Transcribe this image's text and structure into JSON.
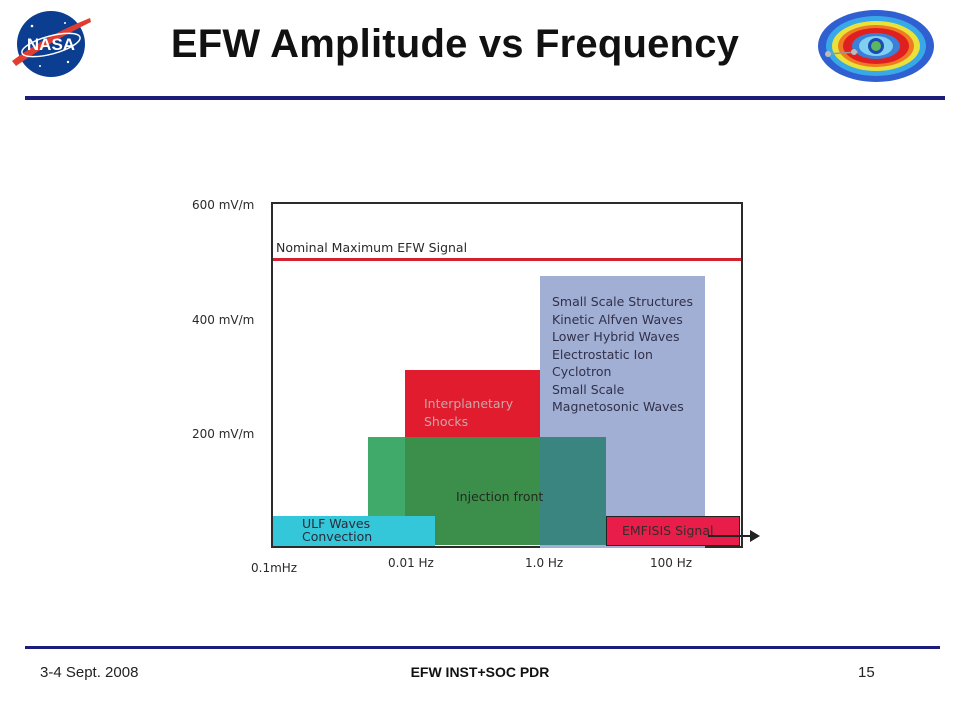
{
  "header": {
    "title": "EFW  Amplitude vs Frequency",
    "left_logo": "NASA",
    "right_logo_icon": "radiation-belts-icon"
  },
  "chart_data": {
    "type": "diagram",
    "y_axis": {
      "ticks": [
        "600 mV/m",
        "400 mV/m",
        "200 mV/m"
      ]
    },
    "x_axis": {
      "ticks": [
        "0.1mHz",
        "0.01 Hz",
        "1.0 Hz",
        "100 Hz"
      ]
    },
    "reference_line": {
      "label": "Nominal Maximum EFW Signal",
      "color": "#d4212f"
    },
    "regions": [
      {
        "name": "ulf",
        "label": "ULF Waves\nConvection",
        "color": "#34c7d9"
      },
      {
        "name": "injection",
        "label": "Injection front",
        "color": "#3faa6a"
      },
      {
        "name": "shocks",
        "label": "Interplanetary\nShocks",
        "color": "#e11c2e"
      },
      {
        "name": "small-scale",
        "label": "Small Scale Structures\nKinetic Alfven Waves\nLower Hybrid Waves\nElectrostatic Ion\nCyclotron\nSmall Scale\nMagnetosonic Waves",
        "color": "#a2afd4"
      },
      {
        "name": "emfisis",
        "label": "EMFISIS Signal",
        "color": "#e81d4a"
      }
    ]
  },
  "footer": {
    "date": "3-4 Sept. 2008",
    "center": "EFW INST+SOC PDR",
    "page": "15"
  }
}
